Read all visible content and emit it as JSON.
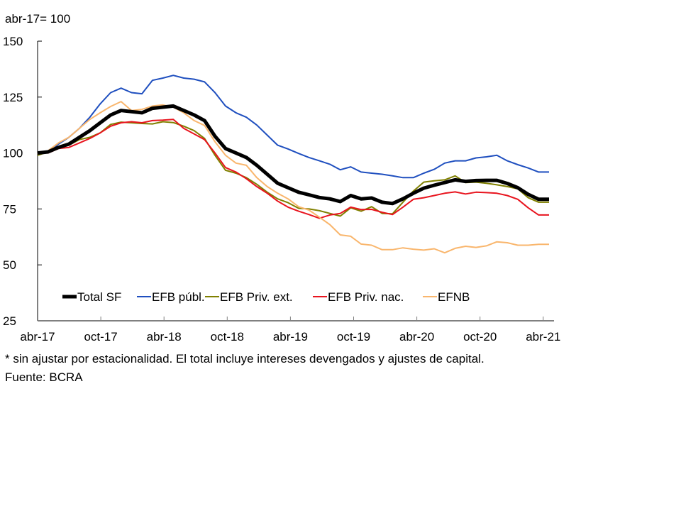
{
  "chart_data": {
    "type": "line",
    "title": "",
    "unit_label": "abr-17= 100",
    "xlabel": "",
    "ylabel": "",
    "ylim": [
      25,
      150
    ],
    "yticks": [
      25,
      50,
      75,
      100,
      125,
      150
    ],
    "grid": false,
    "legend_position": "bottom-inside",
    "x": [
      "abr-17",
      "may-17",
      "jun-17",
      "jul-17",
      "ago-17",
      "sep-17",
      "oct-17",
      "nov-17",
      "dic-17",
      "ene-18",
      "feb-18",
      "mar-18",
      "abr-18",
      "may-18",
      "jun-18",
      "jul-18",
      "ago-18",
      "sep-18",
      "oct-18",
      "nov-18",
      "dic-18",
      "ene-19",
      "feb-19",
      "mar-19",
      "abr-19",
      "may-19",
      "jun-19",
      "jul-19",
      "ago-19",
      "sep-19",
      "oct-19",
      "nov-19",
      "dic-19",
      "ene-20",
      "feb-20",
      "mar-20",
      "abr-20",
      "may-20",
      "jun-20",
      "jul-20",
      "ago-20",
      "sep-20",
      "oct-20",
      "nov-20",
      "dic-20",
      "ene-21",
      "feb-21",
      "mar-21",
      "abr-21",
      "may-21"
    ],
    "xticks": [
      {
        "index": 0,
        "label": "abr-17"
      },
      {
        "index": 6,
        "label": "oct-17"
      },
      {
        "index": 12,
        "label": "abr-18"
      },
      {
        "index": 18,
        "label": "oct-18"
      },
      {
        "index": 24,
        "label": "abr-19"
      },
      {
        "index": 30,
        "label": "oct-19"
      },
      {
        "index": 36,
        "label": "abr-20"
      },
      {
        "index": 42,
        "label": "oct-20"
      },
      {
        "index": 48,
        "label": "abr-21"
      }
    ],
    "series": [
      {
        "name": "Total SF",
        "color": "#000000",
        "thick": true,
        "values": [
          100,
          100.5,
          102.5,
          104,
          107,
          110,
          113.5,
          117,
          119,
          118.5,
          118,
          120,
          120.5,
          121,
          119,
          117,
          114.5,
          107.5,
          102,
          100,
          98,
          94.5,
          90.5,
          86.5,
          84.5,
          82.5,
          81.3,
          80.1,
          79.5,
          78.3,
          81,
          79.5,
          79.9,
          78,
          77.4,
          79.5,
          82,
          84.3,
          85.6,
          86.8,
          88,
          87.3,
          87.7,
          87.8,
          87.8,
          86.4,
          84.5,
          81.5,
          79.3,
          79.3
        ]
      },
      {
        "name": "EFB públ.",
        "color": "#1f4fbf",
        "values": [
          100,
          100.5,
          104,
          107,
          111,
          116,
          122,
          127,
          129,
          127,
          126.5,
          132.5,
          133.5,
          134.7,
          133.5,
          133,
          131.8,
          127,
          121,
          118,
          116,
          112.5,
          108,
          103.5,
          101.8,
          99.8,
          98,
          96.5,
          95,
          92.5,
          93.8,
          91.5,
          91,
          90.5,
          89.8,
          89,
          89,
          91,
          92.7,
          95.5,
          96.5,
          96.5,
          97.8,
          98.3,
          99,
          96.5,
          94.8,
          93.3,
          91.5,
          91.5
        ]
      },
      {
        "name": "EFB Priv. ext.",
        "color": "#808000",
        "values": [
          99,
          100.5,
          102.5,
          103.5,
          106,
          107,
          109,
          112.8,
          113.8,
          113.5,
          113.2,
          113,
          114,
          113.6,
          112,
          110,
          106.5,
          99,
          92.3,
          91,
          89,
          86,
          82.5,
          79.5,
          77.8,
          75.3,
          75,
          74.2,
          73,
          71.8,
          75.5,
          74,
          76,
          73,
          72.8,
          78,
          83,
          87,
          87.6,
          88,
          89.8,
          86.8,
          87,
          86.5,
          85.8,
          85,
          84,
          80,
          78,
          78
        ]
      },
      {
        "name": "EFB Priv. nac.",
        "color": "#e8141e",
        "values": [
          100.5,
          100,
          102,
          102.5,
          104.5,
          106.5,
          109,
          112,
          113.5,
          114,
          113.5,
          114.5,
          114.7,
          115,
          111,
          108.5,
          106,
          100,
          93.5,
          91.5,
          88.5,
          85,
          82,
          78.5,
          75.8,
          74,
          72.5,
          70.8,
          72.3,
          73,
          75.8,
          74.7,
          74.8,
          73.5,
          72.5,
          75.8,
          79.3,
          80,
          81,
          82,
          82.6,
          81.7,
          82.5,
          82.3,
          82,
          81,
          79.3,
          75.5,
          72.3,
          72.3
        ]
      },
      {
        "name": "EFNB",
        "color": "#f9b66d",
        "values": [
          99.5,
          101,
          104.5,
          107,
          111,
          115,
          118,
          120.8,
          123,
          119,
          119.5,
          121,
          121.5,
          120.5,
          118,
          114.5,
          112.3,
          105,
          99,
          95.5,
          94.5,
          89,
          85,
          82,
          79.5,
          76,
          74.5,
          71.3,
          68,
          63.4,
          62.8,
          59.3,
          58.8,
          56.8,
          56.8,
          57.6,
          57,
          56.6,
          57.2,
          55.4,
          57.4,
          58.3,
          57.8,
          58.5,
          60.3,
          59.9,
          58.8,
          58.8,
          59.2,
          59.2
        ]
      }
    ],
    "legend": [
      "Total SF",
      "EFB públ.",
      "EFB Priv. ext.",
      "EFB Priv. nac.",
      "EFNB"
    ]
  },
  "notes": {
    "footnote": "* sin ajustar por estacionalidad. El total incluye intereses devengados y ajustes de capital.",
    "source": "Fuente: BCRA"
  }
}
